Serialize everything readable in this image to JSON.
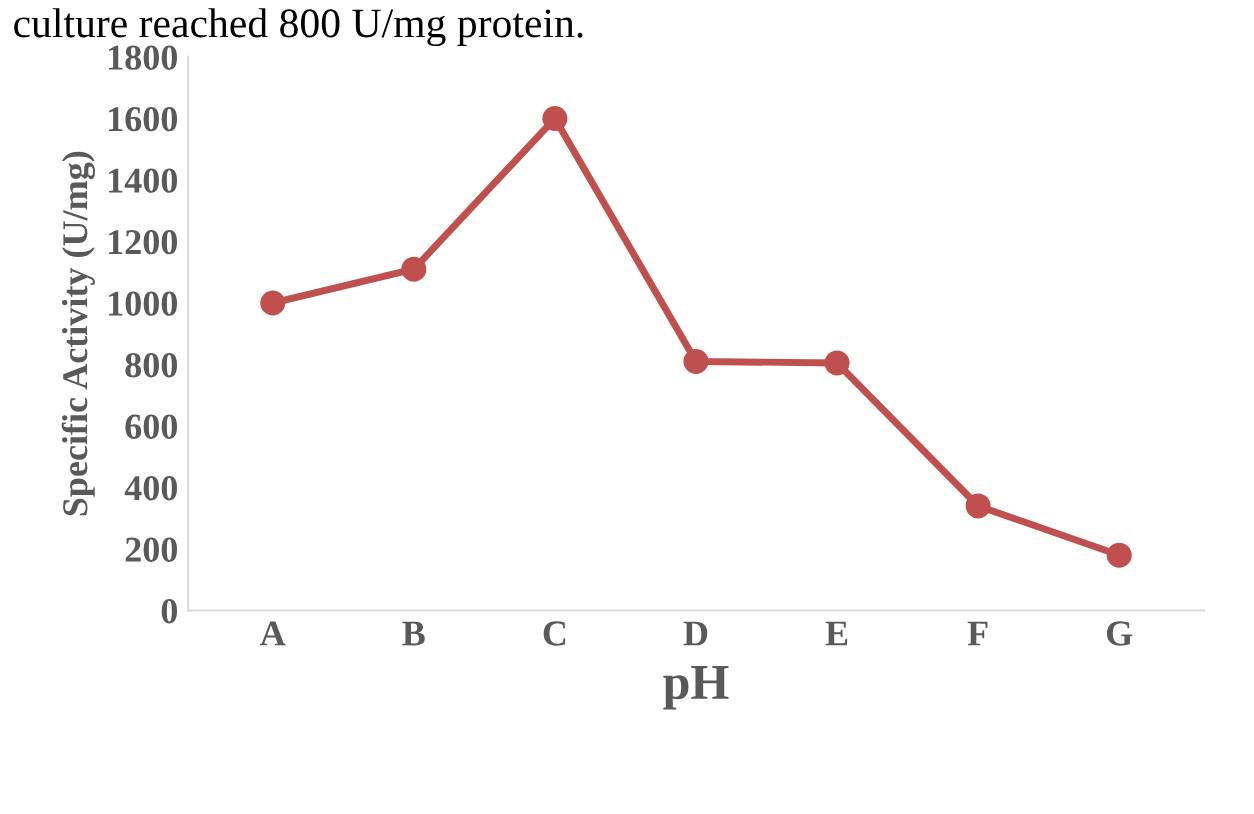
{
  "chart_data": {
    "type": "line",
    "annotations": [
      "culture reached 800 U/mg protein."
    ],
    "xlabel": "pH",
    "ylabel": "Specific Activity (U/mg)",
    "categories": [
      "A",
      "B",
      "C",
      "D",
      "E",
      "F",
      "G"
    ],
    "series": [
      {
        "color": "#c0504d",
        "values": [
          1000,
          1110,
          1600,
          810,
          805,
          340,
          180
        ]
      }
    ],
    "ylim": [
      0,
      1800
    ],
    "yticks": [
      0,
      200,
      400,
      600,
      800,
      1000,
      1200,
      1400,
      1600,
      1800
    ],
    "marker": "circle",
    "line_style": "solid",
    "grid": false,
    "legend": false
  }
}
